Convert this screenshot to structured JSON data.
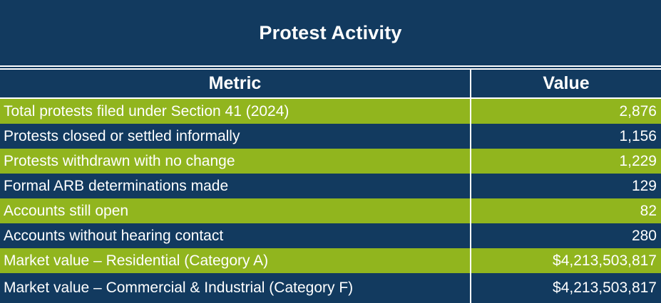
{
  "title": "Protest Activity",
  "table": {
    "columns": [
      "Metric",
      "Value"
    ],
    "rows": [
      {
        "metric": "Total protests filed under Section 41 (2024)",
        "value": "2,876"
      },
      {
        "metric": "Protests closed or settled informally",
        "value": "1,156"
      },
      {
        "metric": "Protests withdrawn with no change",
        "value": "1,229"
      },
      {
        "metric": "Formal ARB determinations made",
        "value": "129"
      },
      {
        "metric": "Accounts still open",
        "value": "82"
      },
      {
        "metric": "Accounts without hearing contact",
        "value": "280"
      },
      {
        "metric": "Market value – Residential (Category A)",
        "value": "$4,213,503,817"
      },
      {
        "metric": "Market value – Commercial & Industrial (Category F)",
        "value": "$4,213,503,817"
      }
    ]
  },
  "colors": {
    "navy": "#123A5F",
    "green": "#91B51E",
    "divider": "#FFFFFF",
    "text": "#FFFFFF"
  }
}
